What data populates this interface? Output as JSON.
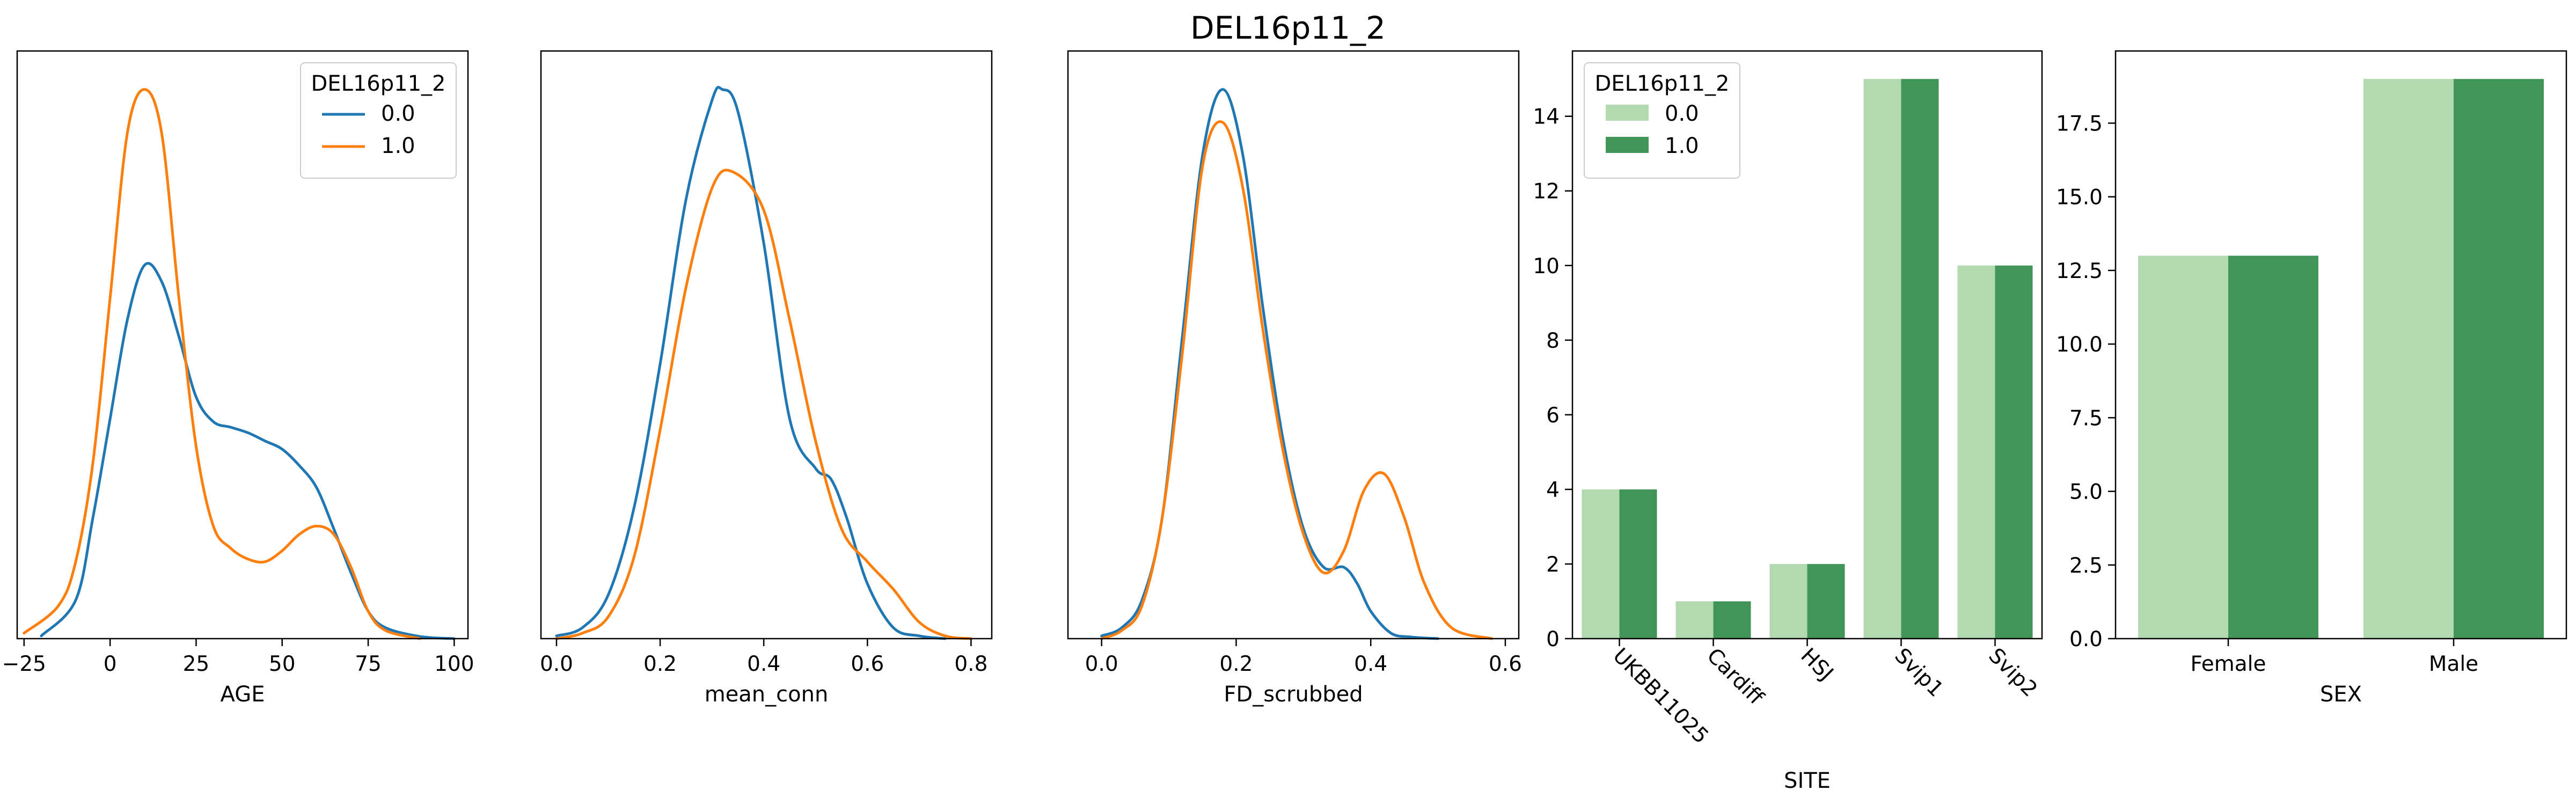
{
  "suptitle": "DEL16p11_2",
  "colors": {
    "kde_0": "#1f77b4",
    "kde_1": "#ff7f0e",
    "bar_0": "#b3d9b0",
    "bar_1": "#429559"
  },
  "chart_data": [
    {
      "id": "age",
      "type": "line",
      "subtype": "kde",
      "xlabel": "AGE",
      "ylabel": "",
      "xlim": [
        -27,
        104
      ],
      "ylim": [
        0,
        1.07
      ],
      "xticks": [
        -25,
        0,
        25,
        50,
        75,
        100
      ],
      "xtick_labels": [
        "−25",
        "0",
        "25",
        "50",
        "75",
        "100"
      ],
      "yticks_visible": false,
      "legend": {
        "title": "DEL16p11_2",
        "position": "upper right",
        "entries": [
          "0.0",
          "1.0"
        ]
      },
      "series": [
        {
          "name": "0.0",
          "x": [
            -20,
            -10,
            -5,
            0,
            5,
            10,
            15,
            20,
            25,
            30,
            35,
            40,
            45,
            50,
            55,
            60,
            65,
            70,
            75,
            80,
            90,
            100
          ],
          "y": [
            0.005,
            0.07,
            0.22,
            0.4,
            0.58,
            0.68,
            0.65,
            0.55,
            0.44,
            0.395,
            0.385,
            0.375,
            0.36,
            0.345,
            0.315,
            0.275,
            0.2,
            0.12,
            0.05,
            0.02,
            0.004,
            0.0
          ]
        },
        {
          "name": "1.0",
          "x": [
            -25,
            -15,
            -10,
            -5,
            0,
            5,
            10,
            15,
            20,
            25,
            30,
            35,
            40,
            45,
            50,
            55,
            60,
            65,
            70,
            75,
            80,
            90
          ],
          "y": [
            0.01,
            0.06,
            0.14,
            0.32,
            0.62,
            0.92,
            1.0,
            0.92,
            0.62,
            0.35,
            0.205,
            0.165,
            0.145,
            0.14,
            0.16,
            0.19,
            0.205,
            0.19,
            0.13,
            0.05,
            0.015,
            0.0
          ]
        }
      ]
    },
    {
      "id": "mean_conn",
      "type": "line",
      "subtype": "kde",
      "xlabel": "mean_conn",
      "ylabel": "",
      "xlim": [
        -0.03,
        0.84
      ],
      "ylim": [
        0,
        1.07
      ],
      "xticks": [
        0.0,
        0.2,
        0.4,
        0.6,
        0.8
      ],
      "xtick_labels": [
        "0.0",
        "0.2",
        "0.4",
        "0.6",
        "0.8"
      ],
      "yticks_visible": false,
      "series": [
        {
          "name": "0.0",
          "x": [
            0.0,
            0.05,
            0.1,
            0.15,
            0.2,
            0.25,
            0.3,
            0.32,
            0.35,
            0.4,
            0.45,
            0.5,
            0.53,
            0.56,
            0.6,
            0.65,
            0.7,
            0.75
          ],
          "y": [
            0.005,
            0.02,
            0.08,
            0.24,
            0.5,
            0.8,
            0.98,
            1.0,
            0.96,
            0.72,
            0.4,
            0.31,
            0.29,
            0.22,
            0.1,
            0.02,
            0.005,
            0.0
          ]
        },
        {
          "name": "1.0",
          "x": [
            0.0,
            0.05,
            0.1,
            0.15,
            0.2,
            0.25,
            0.3,
            0.34,
            0.4,
            0.45,
            0.5,
            0.55,
            0.6,
            0.65,
            0.7,
            0.75,
            0.8
          ],
          "y": [
            0.0,
            0.01,
            0.04,
            0.15,
            0.38,
            0.64,
            0.82,
            0.85,
            0.78,
            0.58,
            0.36,
            0.2,
            0.14,
            0.09,
            0.03,
            0.005,
            0.0
          ]
        }
      ]
    },
    {
      "id": "fd_scrubbed",
      "type": "line",
      "subtype": "kde",
      "xlabel": "FD_scrubbed",
      "ylabel": "",
      "xlim": [
        -0.05,
        0.62
      ],
      "ylim": [
        0,
        1.07
      ],
      "xticks": [
        0.0,
        0.2,
        0.4,
        0.6
      ],
      "xtick_labels": [
        "0.0",
        "0.2",
        "0.4",
        "0.6"
      ],
      "yticks_visible": false,
      "series": [
        {
          "name": "0.0",
          "x": [
            0.0,
            0.03,
            0.06,
            0.09,
            0.12,
            0.15,
            0.18,
            0.21,
            0.24,
            0.27,
            0.3,
            0.33,
            0.36,
            0.38,
            0.4,
            0.43,
            0.46,
            0.5
          ],
          "y": [
            0.005,
            0.02,
            0.07,
            0.22,
            0.55,
            0.88,
            1.0,
            0.88,
            0.6,
            0.36,
            0.2,
            0.13,
            0.13,
            0.1,
            0.05,
            0.01,
            0.003,
            0.0
          ]
        },
        {
          "name": "1.0",
          "x": [
            0.0,
            0.03,
            0.06,
            0.09,
            0.12,
            0.15,
            0.18,
            0.21,
            0.24,
            0.27,
            0.3,
            0.33,
            0.36,
            0.39,
            0.42,
            0.45,
            0.48,
            0.52,
            0.58
          ],
          "y": [
            0.0,
            0.015,
            0.06,
            0.22,
            0.52,
            0.86,
            0.94,
            0.82,
            0.56,
            0.34,
            0.19,
            0.12,
            0.16,
            0.27,
            0.3,
            0.22,
            0.1,
            0.02,
            0.0
          ]
        }
      ]
    },
    {
      "id": "site",
      "type": "bar",
      "xlabel": "SITE",
      "ylabel": "",
      "categories": [
        "UKBB11025",
        "Cardiff",
        "HSJ",
        "Svip1",
        "Svip2"
      ],
      "ylim": [
        0,
        15.75
      ],
      "yticks": [
        0,
        2,
        4,
        6,
        8,
        10,
        12,
        14
      ],
      "xtick_rotation": -45,
      "legend": {
        "title": "DEL16p11_2",
        "position": "upper left",
        "entries": [
          "0.0",
          "1.0"
        ]
      },
      "series": [
        {
          "name": "0.0",
          "values": [
            4,
            1,
            2,
            15,
            10
          ]
        },
        {
          "name": "1.0",
          "values": [
            4,
            1,
            2,
            15,
            10
          ]
        }
      ]
    },
    {
      "id": "sex",
      "type": "bar",
      "xlabel": "SEX",
      "ylabel": "",
      "categories": [
        "Female",
        "Male"
      ],
      "ylim": [
        0,
        19.95
      ],
      "yticks": [
        0.0,
        2.5,
        5.0,
        7.5,
        10.0,
        12.5,
        15.0,
        17.5
      ],
      "ytick_labels": [
        "0.0",
        "2.5",
        "5.0",
        "7.5",
        "10.0",
        "12.5",
        "15.0",
        "17.5"
      ],
      "series": [
        {
          "name": "0.0",
          "values": [
            13,
            19
          ]
        },
        {
          "name": "1.0",
          "values": [
            13,
            19
          ]
        }
      ]
    }
  ]
}
